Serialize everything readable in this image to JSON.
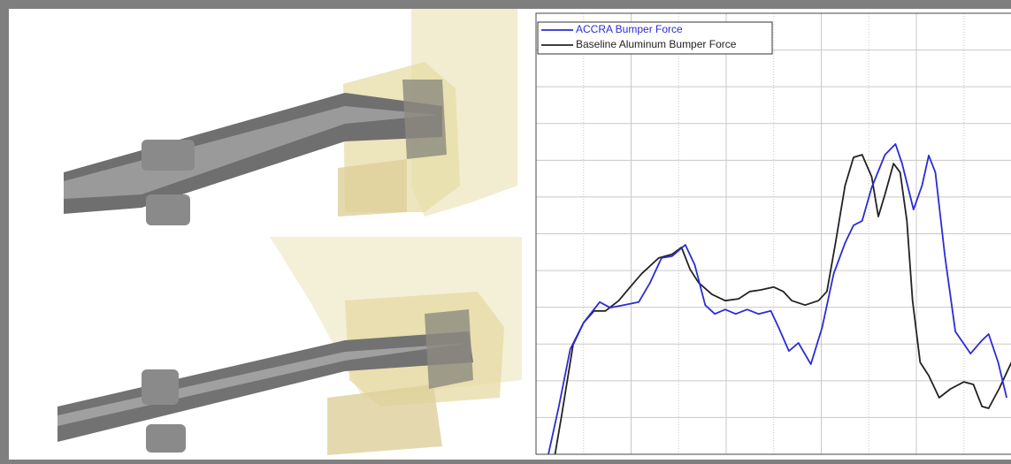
{
  "chart_data": {
    "type": "line",
    "xlim": [
      0,
      5
    ],
    "ylim": [
      0,
      12
    ],
    "xticks": [
      0.5,
      1,
      1.5,
      2,
      2.5,
      3,
      3.5,
      4,
      4.5
    ],
    "yticks": [
      1,
      2,
      3,
      4,
      5,
      6,
      7,
      8,
      9,
      10,
      11
    ],
    "grid": true,
    "legend": "upper left",
    "series": [
      {
        "name": "ACCRA Bumper Force",
        "color": "#2b2bd6",
        "x": [
          0.13,
          0.24,
          0.36,
          0.5,
          0.67,
          0.78,
          0.92,
          1.08,
          1.2,
          1.32,
          1.43,
          1.57,
          1.67,
          1.78,
          1.88,
          1.99,
          2.1,
          2.22,
          2.34,
          2.47,
          2.55,
          2.66,
          2.76,
          2.89,
          3.01,
          3.13,
          3.25,
          3.34,
          3.43,
          3.53,
          3.67,
          3.78,
          3.85,
          3.97,
          4.06,
          4.13,
          4.2,
          4.3,
          4.41,
          4.57,
          4.69,
          4.76,
          4.86,
          4.95
        ],
        "values": [
          0,
          1.3,
          2.86,
          3.58,
          4.14,
          3.99,
          4.06,
          4.14,
          4.67,
          5.34,
          5.39,
          5.7,
          5.15,
          4.06,
          3.82,
          3.94,
          3.82,
          3.94,
          3.82,
          3.9,
          3.46,
          2.81,
          3.03,
          2.45,
          3.46,
          4.91,
          5.75,
          6.23,
          6.35,
          7.26,
          8.15,
          8.44,
          7.91,
          6.66,
          7.31,
          8.13,
          7.67,
          5.39,
          3.34,
          2.74,
          3.1,
          3.27,
          2.5,
          1.54
        ]
      },
      {
        "name": "Baseline Aluminum Bumper Force",
        "color": "#222222",
        "x": [
          0.2,
          0.27,
          0.39,
          0.5,
          0.61,
          0.73,
          0.87,
          0.99,
          1.11,
          1.29,
          1.43,
          1.53,
          1.62,
          1.71,
          1.85,
          1.99,
          2.13,
          2.25,
          2.36,
          2.5,
          2.6,
          2.69,
          2.83,
          2.97,
          3.06,
          3.15,
          3.25,
          3.34,
          3.43,
          3.53,
          3.6,
          3.67,
          3.76,
          3.83,
          3.9,
          3.96,
          4.04,
          4.13,
          4.24,
          4.36,
          4.5,
          4.6,
          4.69,
          4.76,
          4.87,
          5.0
        ],
        "values": [
          0,
          1.06,
          2.98,
          3.58,
          3.9,
          3.9,
          4.18,
          4.55,
          4.91,
          5.34,
          5.44,
          5.63,
          5.03,
          4.67,
          4.35,
          4.18,
          4.23,
          4.43,
          4.47,
          4.55,
          4.43,
          4.18,
          4.06,
          4.18,
          4.43,
          5.75,
          7.31,
          8.08,
          8.15,
          7.55,
          6.47,
          7.07,
          7.91,
          7.67,
          6.35,
          4.18,
          2.5,
          2.14,
          1.54,
          1.78,
          1.97,
          1.9,
          1.3,
          1.25,
          1.78,
          2.5
        ]
      }
    ]
  }
}
